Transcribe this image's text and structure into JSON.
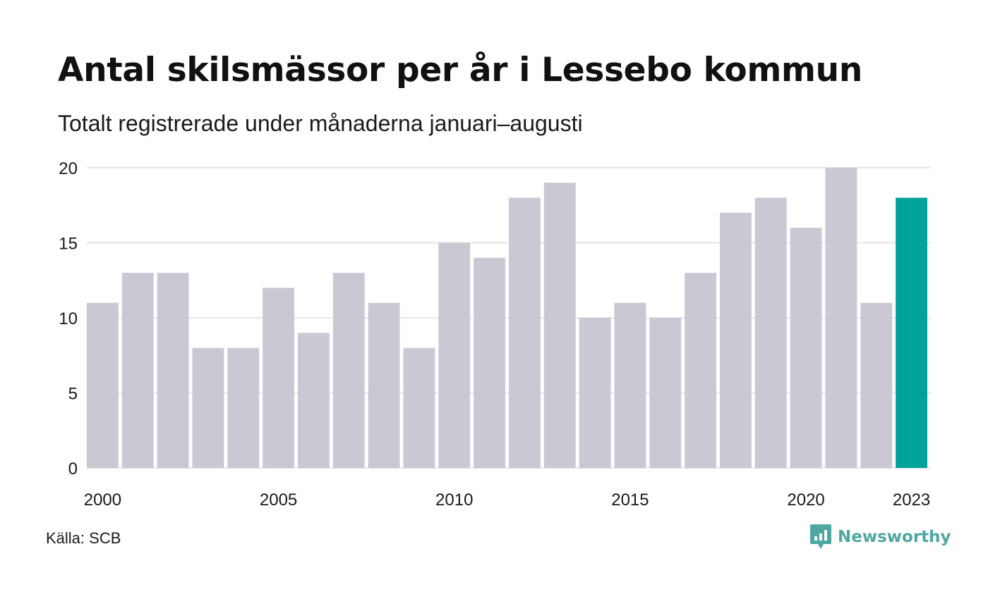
{
  "header": {
    "title": "Antal skilsmässor per år i Lessebo kommun",
    "subtitle": "Totalt registrerade under månaderna januari–augusti"
  },
  "footer": {
    "source": "Källa: SCB",
    "brand": "Newsworthy",
    "brand_icon": "bar-chart-speech-bubble-icon"
  },
  "chart_data": {
    "type": "bar",
    "x": [
      2000,
      2001,
      2002,
      2003,
      2004,
      2005,
      2006,
      2007,
      2008,
      2009,
      2010,
      2011,
      2012,
      2013,
      2014,
      2015,
      2016,
      2017,
      2018,
      2019,
      2020,
      2021,
      2022,
      2023
    ],
    "values": [
      11,
      13,
      13,
      8,
      8,
      12,
      9,
      13,
      11,
      8,
      15,
      14,
      18,
      19,
      10,
      11,
      10,
      13,
      17,
      18,
      16,
      20,
      11,
      18
    ],
    "x_tick_labels": [
      "2000",
      "2005",
      "2010",
      "2015",
      "2020",
      "2023"
    ],
    "y_ticks": [
      0,
      5,
      10,
      15,
      20
    ],
    "ylim": [
      0,
      20
    ],
    "grid": "horizontal",
    "legend": "none",
    "colors": {
      "bar": "#c9c8d3",
      "highlight": "#00a398",
      "grid": "#e6e6e6",
      "text": "#1a1a1a"
    },
    "highlight_x": 2023
  }
}
